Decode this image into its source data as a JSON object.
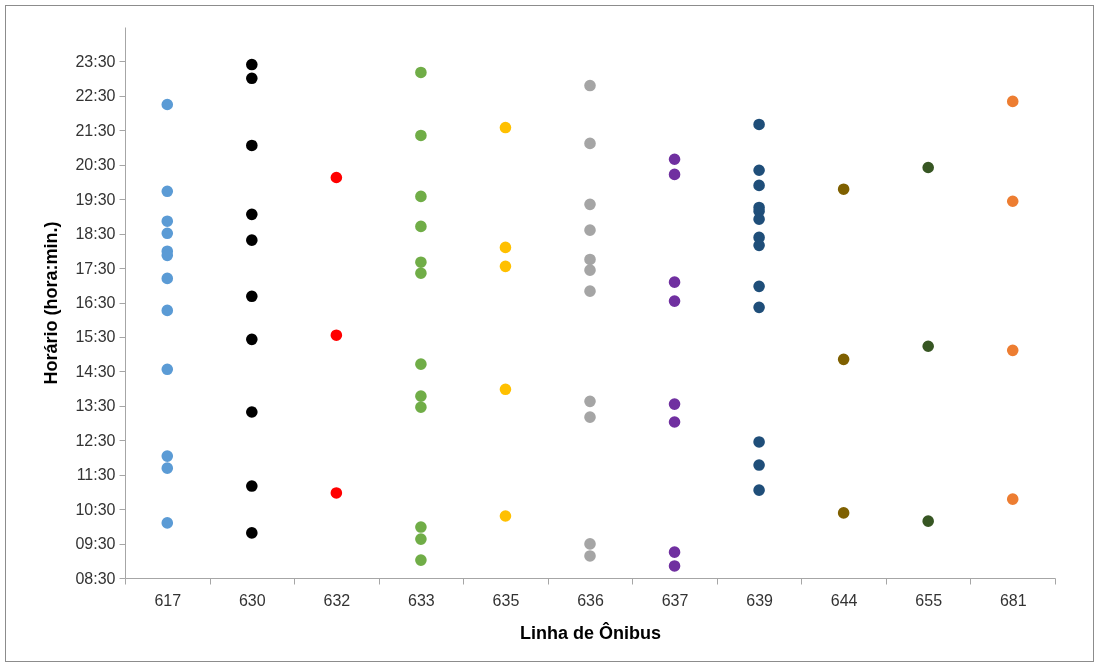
{
  "chart_data": {
    "type": "scatter",
    "xlabel": "Linha de Ônibus",
    "ylabel": "Horário (hora:min.)",
    "categories": [
      "617",
      "630",
      "632",
      "633",
      "635",
      "636",
      "637",
      "639",
      "644",
      "655",
      "681"
    ],
    "ylim": [
      8.5,
      24.5
    ],
    "yticks": [
      {
        "value": 8.5,
        "label": "08:30"
      },
      {
        "value": 9.5,
        "label": "09:30"
      },
      {
        "value": 10.5,
        "label": "10:30"
      },
      {
        "value": 11.5,
        "label": "11:30"
      },
      {
        "value": 12.5,
        "label": "12:30"
      },
      {
        "value": 13.5,
        "label": "13:30"
      },
      {
        "value": 14.5,
        "label": "14:30"
      },
      {
        "value": 15.5,
        "label": "15:30"
      },
      {
        "value": 16.5,
        "label": "16:30"
      },
      {
        "value": 17.5,
        "label": "17:30"
      },
      {
        "value": 18.5,
        "label": "18:30"
      },
      {
        "value": 19.5,
        "label": "19:30"
      },
      {
        "value": 20.5,
        "label": "20:30"
      },
      {
        "value": 21.5,
        "label": "21:30"
      },
      {
        "value": 22.5,
        "label": "22:30"
      },
      {
        "value": 23.5,
        "label": "23:30"
      }
    ],
    "series": [
      {
        "color": "#5b9bd5",
        "x": [
          "617",
          "617",
          "617",
          "617",
          "617",
          "617",
          "617",
          "617",
          "617",
          "617",
          "617",
          "617"
        ],
        "values": [
          22.25,
          19.73,
          18.86,
          18.51,
          17.99,
          17.87,
          17.2,
          16.27,
          14.56,
          12.04,
          11.69,
          10.1
        ]
      },
      {
        "color": "#000000",
        "x": [
          "630",
          "630",
          "630",
          "630",
          "630",
          "630",
          "630",
          "630",
          "630",
          "630"
        ],
        "values": [
          23.41,
          23.01,
          21.06,
          19.06,
          18.31,
          16.68,
          15.43,
          13.32,
          11.17,
          9.81
        ]
      },
      {
        "color": "#ff0000",
        "x": [
          "632",
          "632",
          "632"
        ],
        "values": [
          20.13,
          15.55,
          10.97
        ]
      },
      {
        "color": "#70ad47",
        "x": [
          "633",
          "633",
          "633",
          "633",
          "633",
          "633",
          "633",
          "633",
          "633",
          "633",
          "633",
          "633"
        ],
        "values": [
          23.18,
          21.35,
          19.58,
          18.71,
          17.67,
          17.35,
          14.71,
          13.78,
          13.46,
          9.98,
          9.63,
          9.02
        ]
      },
      {
        "color": "#ffc000",
        "x": [
          "635",
          "635",
          "635",
          "635",
          "635"
        ],
        "values": [
          21.58,
          18.1,
          17.55,
          13.98,
          10.3
        ]
      },
      {
        "color": "#a5a5a5",
        "x": [
          "636",
          "636",
          "636",
          "636",
          "636",
          "636",
          "636",
          "636",
          "636",
          "636",
          "636"
        ],
        "values": [
          22.8,
          21.12,
          19.35,
          18.6,
          17.75,
          17.44,
          16.83,
          13.63,
          13.17,
          9.49,
          9.14
        ]
      },
      {
        "color": "#7030a0",
        "x": [
          "637",
          "637",
          "637",
          "637",
          "637",
          "637",
          "637",
          "637"
        ],
        "values": [
          20.66,
          20.22,
          17.09,
          16.54,
          13.55,
          13.03,
          9.25,
          8.85
        ]
      },
      {
        "color": "#1f4e79",
        "x": [
          "639",
          "639",
          "639",
          "639",
          "639",
          "639",
          "639",
          "639",
          "639",
          "639",
          "639",
          "639",
          "639"
        ],
        "values": [
          21.67,
          20.34,
          19.9,
          19.26,
          19.15,
          18.92,
          18.39,
          18.16,
          16.97,
          16.36,
          12.45,
          11.78,
          11.05
        ]
      },
      {
        "color": "#7f6000",
        "x": [
          "644",
          "644",
          "644"
        ],
        "values": [
          19.79,
          14.85,
          10.39
        ]
      },
      {
        "color": "#375623",
        "x": [
          "655",
          "655",
          "655"
        ],
        "values": [
          20.42,
          15.23,
          10.15
        ]
      },
      {
        "color": "#ed7d31",
        "x": [
          "681",
          "681",
          "681",
          "681"
        ],
        "values": [
          22.34,
          19.44,
          15.11,
          10.79
        ]
      }
    ]
  }
}
